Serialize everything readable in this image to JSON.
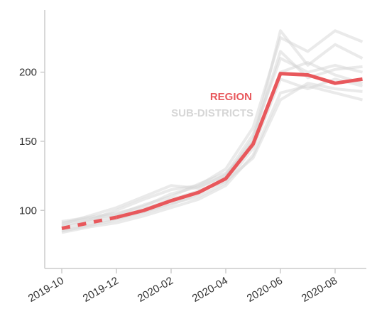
{
  "chart_data": {
    "type": "line",
    "categories": [
      "2019-10",
      null,
      "2019-12",
      null,
      "2020-02",
      null,
      "2020-04",
      null,
      "2020-06",
      null,
      "2020-08",
      null
    ],
    "series": [
      {
        "name": "REGION",
        "color": "#e8585c",
        "dashed_segments": 2,
        "values": [
          87,
          91,
          95,
          100,
          107,
          113,
          123,
          148,
          199,
          198,
          192,
          195
        ]
      }
    ],
    "sub_districts": {
      "name": "SUB-DISTRICTS",
      "color": "#d6d6d6",
      "values": [
        [
          92,
          95,
          98,
          103,
          112,
          117,
          125,
          150,
          230,
          205,
          220,
          210
        ],
        [
          84,
          88,
          91,
          96,
          102,
          108,
          118,
          140,
          185,
          190,
          185,
          180
        ],
        [
          89,
          93,
          100,
          108,
          115,
          118,
          130,
          160,
          225,
          215,
          230,
          222
        ],
        [
          86,
          90,
          94,
          99,
          105,
          110,
          120,
          145,
          195,
          188,
          195,
          190
        ],
        [
          90,
          96,
          102,
          110,
          118,
          116,
          126,
          155,
          210,
          200,
          205,
          200
        ],
        [
          88,
          92,
          96,
          101,
          108,
          114,
          121,
          138,
          180,
          192,
          188,
          186
        ],
        [
          85,
          89,
          93,
          98,
          104,
          112,
          124,
          152,
          215,
          196,
          202,
          204
        ],
        [
          91,
          94,
          97,
          104,
          110,
          119,
          127,
          147,
          200,
          207,
          198,
          192
        ]
      ]
    },
    "ylim": [
      58,
      244
    ],
    "yticks": [
      100,
      150,
      200
    ]
  }
}
